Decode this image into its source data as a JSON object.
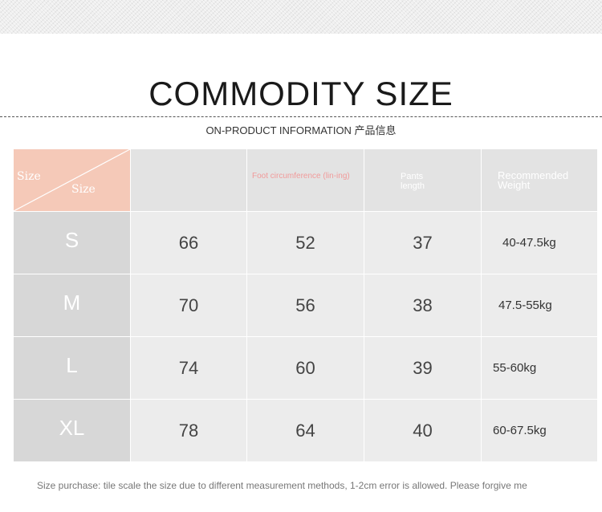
{
  "title": "COMMODITY SIZE",
  "subtitle": "ON-PRODUCT INFORMATION 产品信息",
  "table": {
    "corner_top": "Size",
    "corner_bottom": "Size",
    "headers": [
      "",
      "Foot circumference (lin-ing)",
      "Pants length",
      "Recommended Weight"
    ],
    "rows": [
      {
        "size": "S",
        "values": [
          "66",
          "52",
          "37"
        ],
        "weight": "40-47.5kg"
      },
      {
        "size": "M",
        "values": [
          "70",
          "56",
          "38"
        ],
        "weight": "47.5-55kg"
      },
      {
        "size": "L",
        "values": [
          "74",
          "60",
          "39"
        ],
        "weight": "55-60kg"
      },
      {
        "size": "XL",
        "values": [
          "78",
          "64",
          "40"
        ],
        "weight": "60-67.5kg"
      }
    ]
  },
  "note": "Size purchase: tile scale the size due to different measurement methods, 1-2cm error is allowed. Please forgive me",
  "colors": {
    "corner": "#f5c9b8",
    "header": "#e3e3e3",
    "size_column": "#d7d7d7",
    "cells": "#ececec",
    "accent_pink": "#f19a9a"
  }
}
